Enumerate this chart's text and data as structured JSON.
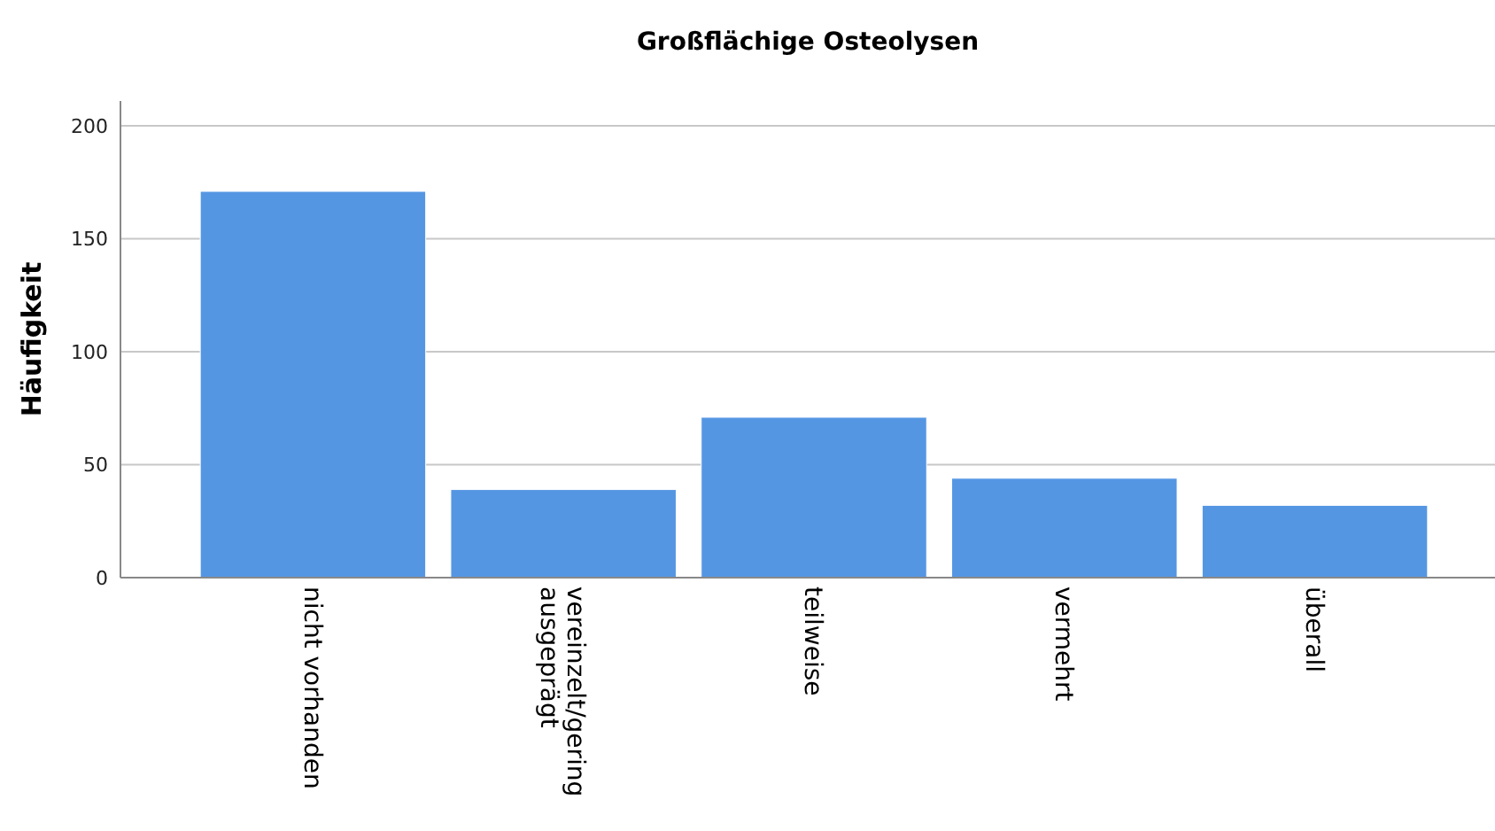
{
  "chart_data": {
    "type": "bar",
    "title": "Großflächige Osteolysen",
    "ylabel": "Häufigkeit",
    "categories": [
      "nicht vorhanden",
      "vereinzelt/gering ausgeprägt",
      "teilweise",
      "vermehrt",
      "überall"
    ],
    "values": [
      171,
      39,
      71,
      44,
      32
    ],
    "color": "#5596e3",
    "ylim": [
      0,
      211
    ],
    "yticks": [
      0,
      50,
      100,
      150,
      200
    ],
    "grid": "y"
  }
}
